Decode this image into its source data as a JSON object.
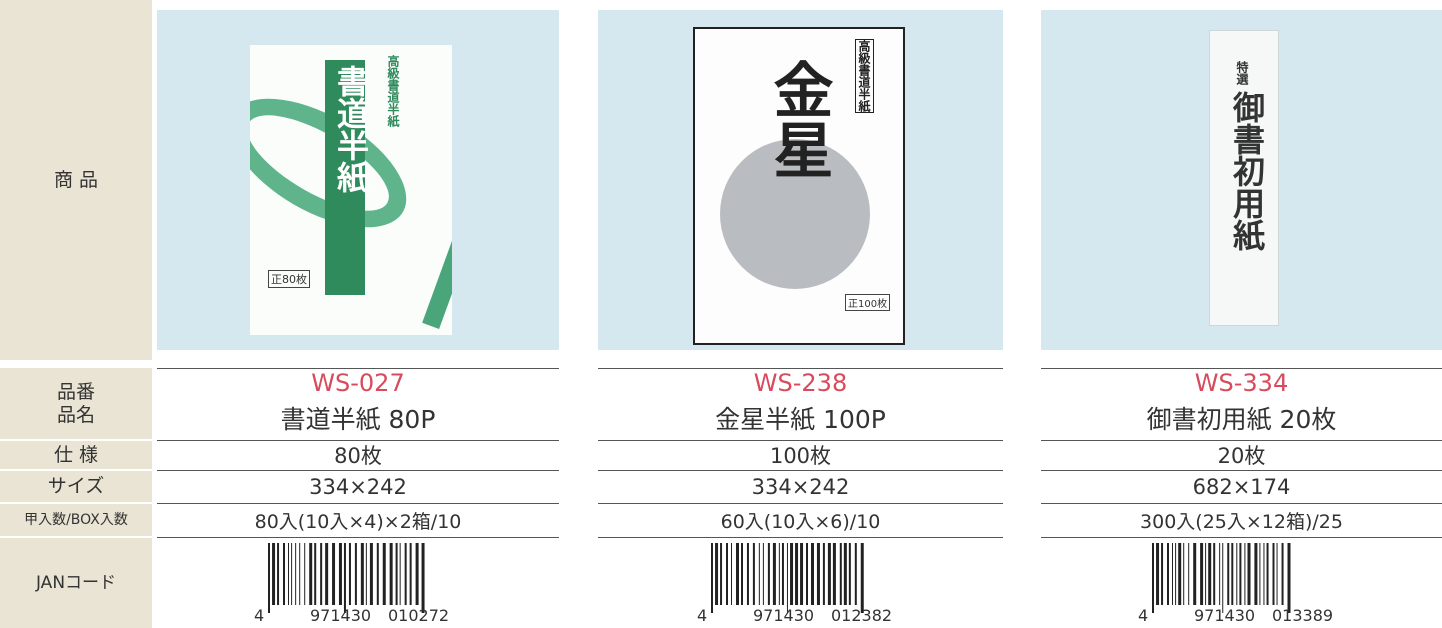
{
  "labels": {
    "product": "商 品",
    "code": "品番",
    "name": "品名",
    "spec": "仕 様",
    "size": "サイズ",
    "qty": "甲入数/BOX入数",
    "jan": "JANコード"
  },
  "products": [
    {
      "package_texts": [
        "高級書道半紙",
        "書道半紙",
        "正80枚"
      ],
      "code": "WS-027",
      "name": "書道半紙 80P",
      "spec": "80枚",
      "size": "334×242",
      "qty": "80入(10入×4)×2箱/10",
      "jan": [
        "4",
        "971430",
        "010272"
      ]
    },
    {
      "package_texts": [
        "高級書道半紙",
        "金星",
        "正100枚"
      ],
      "code": "WS-238",
      "name": "金星半紙 100P",
      "spec": "100枚",
      "size": "334×242",
      "qty": "60入(10入×6)/10",
      "jan": [
        "4",
        "971430",
        "012382"
      ]
    },
    {
      "package_texts": [
        "特選",
        "御書初用紙"
      ],
      "code": "WS-334",
      "name": "御書初用紙 20枚",
      "spec": "20枚",
      "size": "682×174",
      "qty": "300入(25入×12箱)/25",
      "jan": [
        "4",
        "971430",
        "013389"
      ]
    }
  ]
}
